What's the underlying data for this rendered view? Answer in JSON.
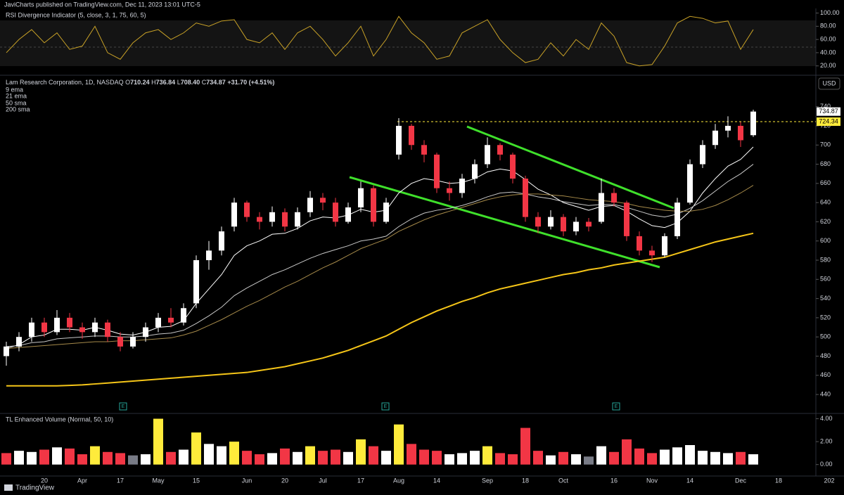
{
  "header": {
    "published": "JaviCharts published on TradingView.com, Dec 11, 2023 13:01 UTC-5"
  },
  "footer": {
    "brand": "TradingView"
  },
  "chart_data": [
    {
      "type": "candlestick",
      "title": "Lam Research Corporation, 1D, NASDAQ",
      "ohlc_prefixes": [
        "O",
        "H",
        "L",
        "C"
      ],
      "last_labels": [
        "710.24",
        "736.84",
        "708.40",
        "734.87"
      ],
      "change": "+31.70 (+4.51%)",
      "currency": "USD",
      "earnings_label": "E",
      "up_color": "#ffffff",
      "down_color": "#f23645",
      "categories": [
        null,
        null,
        null,
        "20",
        null,
        null,
        "Apr",
        null,
        null,
        "17",
        null,
        null,
        "May",
        null,
        null,
        "15",
        null,
        null,
        null,
        "Jun",
        null,
        null,
        "20",
        null,
        null,
        "Jul",
        null,
        null,
        "17",
        null,
        null,
        "Aug",
        null,
        null,
        "14",
        null,
        null,
        null,
        "Sep",
        null,
        null,
        "18",
        null,
        null,
        "Oct",
        null,
        null,
        null,
        "16",
        null,
        null,
        "Nov",
        null,
        null,
        "14",
        null,
        null,
        null,
        "Dec",
        null,
        null,
        "18",
        null,
        null,
        null,
        "202"
      ],
      "ohlc": [
        [
          480,
          495,
          470,
          490
        ],
        [
          490,
          505,
          485,
          500
        ],
        [
          500,
          520,
          495,
          515
        ],
        [
          515,
          520,
          500,
          505
        ],
        [
          505,
          528,
          502,
          520
        ],
        [
          520,
          525,
          505,
          510
        ],
        [
          510,
          515,
          498,
          505
        ],
        [
          505,
          520,
          500,
          515
        ],
        [
          515,
          518,
          495,
          500
        ],
        [
          500,
          505,
          485,
          490
        ],
        [
          490,
          505,
          488,
          500
        ],
        [
          500,
          515,
          495,
          510
        ],
        [
          510,
          525,
          505,
          520
        ],
        [
          520,
          530,
          510,
          515
        ],
        [
          515,
          535,
          512,
          530
        ],
        [
          535,
          585,
          530,
          580
        ],
        [
          580,
          600,
          570,
          590
        ],
        [
          590,
          615,
          585,
          610
        ],
        [
          615,
          645,
          610,
          640
        ],
        [
          640,
          642,
          620,
          625
        ],
        [
          625,
          630,
          612,
          620
        ],
        [
          620,
          636,
          615,
          630
        ],
        [
          630,
          634,
          610,
          615
        ],
        [
          615,
          635,
          612,
          630
        ],
        [
          630,
          652,
          625,
          645
        ],
        [
          645,
          650,
          632,
          640
        ],
        [
          640,
          645,
          615,
          620
        ],
        [
          620,
          640,
          618,
          635
        ],
        [
          635,
          662,
          630,
          655
        ],
        [
          655,
          658,
          615,
          620
        ],
        [
          620,
          645,
          618,
          640
        ],
        [
          690,
          728,
          685,
          720
        ],
        [
          720,
          722,
          695,
          700
        ],
        [
          700,
          705,
          682,
          690
        ],
        [
          690,
          692,
          650,
          655
        ],
        [
          655,
          662,
          642,
          650
        ],
        [
          650,
          670,
          645,
          665
        ],
        [
          665,
          685,
          660,
          680
        ],
        [
          680,
          708,
          676,
          700
        ],
        [
          700,
          702,
          684,
          690
        ],
        [
          690,
          692,
          660,
          665
        ],
        [
          665,
          668,
          620,
          625
        ],
        [
          625,
          630,
          608,
          615
        ],
        [
          615,
          632,
          612,
          625
        ],
        [
          625,
          628,
          605,
          610
        ],
        [
          610,
          625,
          606,
          620
        ],
        [
          620,
          624,
          610,
          615
        ],
        [
          620,
          665,
          618,
          650
        ],
        [
          650,
          655,
          636,
          640
        ],
        [
          640,
          642,
          600,
          605
        ],
        [
          605,
          610,
          585,
          590
        ],
        [
          590,
          595,
          578,
          585
        ],
        [
          585,
          608,
          583,
          605
        ],
        [
          605,
          645,
          602,
          640
        ],
        [
          640,
          685,
          638,
          680
        ],
        [
          680,
          705,
          676,
          700
        ],
        [
          700,
          722,
          696,
          715
        ],
        [
          715,
          730,
          708,
          720
        ],
        [
          720,
          724,
          698,
          705
        ],
        [
          710.24,
          736.84,
          708.4,
          734.87
        ],
        null,
        null,
        null,
        null,
        null,
        null
      ],
      "series": [
        {
          "name": "9 ema",
          "color": "#ffffff",
          "values": [
            488,
            492,
            500,
            502,
            508,
            508,
            507,
            510,
            507,
            503,
            502,
            505,
            510,
            511,
            517,
            535,
            550,
            565,
            585,
            595,
            600,
            607,
            608,
            613,
            621,
            625,
            624,
            627,
            633,
            630,
            632,
            650,
            660,
            665,
            663,
            660,
            661,
            665,
            672,
            675,
            673,
            664,
            654,
            648,
            640,
            636,
            632,
            636,
            637,
            631,
            623,
            616,
            614,
            619,
            631,
            650,
            665,
            678,
            685,
            698,
            null,
            null,
            null,
            null,
            null,
            null
          ]
        },
        {
          "name": "21 ema",
          "color": "#c8c8c8",
          "values": [
            490,
            491,
            494,
            495,
            498,
            499,
            500,
            501,
            501,
            500,
            500,
            501,
            503,
            504,
            507,
            514,
            522,
            531,
            543,
            551,
            558,
            565,
            570,
            576,
            582,
            587,
            591,
            595,
            600,
            602,
            605,
            615,
            623,
            629,
            632,
            634,
            637,
            641,
            646,
            650,
            651,
            649,
            646,
            644,
            641,
            639,
            637,
            638,
            638,
            635,
            631,
            627,
            625,
            628,
            634,
            642,
            652,
            662,
            670,
            680,
            null,
            null,
            null,
            null,
            null,
            null
          ]
        },
        {
          "name": "50 sma",
          "color": "#a68a4a",
          "values": [
            488,
            489,
            490,
            491,
            492,
            493,
            494,
            495,
            495,
            496,
            496,
            497,
            498,
            499,
            502,
            506,
            512,
            518,
            525,
            532,
            538,
            545,
            552,
            558,
            565,
            572,
            578,
            585,
            592,
            597,
            602,
            610,
            616,
            622,
            627,
            631,
            635,
            639,
            643,
            646,
            648,
            649,
            649,
            648,
            647,
            645,
            643,
            642,
            641,
            639,
            636,
            634,
            632,
            631,
            631,
            633,
            637,
            643,
            650,
            658,
            null,
            null,
            null,
            null,
            null,
            null
          ]
        },
        {
          "name": "200 sma",
          "color": "#f5c518",
          "values": [
            449,
            449,
            449,
            449,
            449,
            449.5,
            450,
            451,
            452,
            453,
            454,
            455,
            456,
            457,
            458,
            459,
            460,
            461,
            462,
            463,
            465,
            467,
            469,
            472,
            475,
            478,
            482,
            486,
            491,
            496,
            501,
            508,
            515,
            521,
            527,
            532,
            537,
            541,
            546,
            550,
            553,
            556,
            559,
            562,
            565,
            567,
            570,
            572,
            575,
            577,
            579,
            581,
            583,
            587,
            591,
            595,
            599,
            602,
            605,
            608,
            null,
            null,
            null,
            null,
            null,
            null
          ]
        }
      ],
      "level": 724.34,
      "level_color": "#ffeb3b",
      "ylim": [
        421,
        772
      ],
      "yticks": [
        440,
        460,
        480,
        500,
        520,
        540,
        560,
        580,
        600,
        620,
        640,
        660,
        680,
        700,
        720,
        740
      ]
    },
    {
      "type": "line",
      "title": "RSI Divergence Indicator (5, close, 3, 1, 75, 60, 5)",
      "color": "#c9a227",
      "values": [
        40,
        60,
        75,
        55,
        70,
        45,
        50,
        80,
        40,
        30,
        55,
        70,
        75,
        60,
        70,
        85,
        80,
        88,
        90,
        60,
        55,
        70,
        45,
        70,
        80,
        60,
        35,
        55,
        80,
        35,
        60,
        95,
        70,
        55,
        30,
        35,
        70,
        80,
        90,
        60,
        40,
        25,
        30,
        55,
        35,
        60,
        45,
        85,
        65,
        25,
        20,
        22,
        50,
        85,
        95,
        92,
        85,
        88,
        45,
        75,
        null,
        null,
        null,
        null,
        null,
        null
      ],
      "ylim": [
        8,
        107
      ],
      "yticks": [
        {
          "value": 100,
          "label": "100.00"
        },
        {
          "value": 80,
          "label": "80.00"
        },
        {
          "value": 60,
          "label": "60.00"
        },
        {
          "value": 40,
          "label": "40.00"
        },
        {
          "value": 20,
          "label": "20.00"
        }
      ]
    },
    {
      "type": "bar",
      "title": "TL Enhanced Volume (Normal, 50, 10)",
      "values": [
        1.0,
        1.2,
        1.1,
        1.3,
        1.5,
        1.4,
        0.9,
        1.6,
        1.1,
        1.0,
        0.8,
        0.9,
        4.0,
        1.1,
        1.3,
        2.8,
        1.8,
        1.6,
        2.0,
        1.2,
        0.9,
        1.0,
        1.4,
        1.1,
        1.6,
        1.2,
        1.3,
        1.1,
        2.2,
        1.6,
        1.2,
        3.5,
        1.8,
        1.3,
        1.2,
        0.9,
        1.0,
        1.2,
        1.6,
        1.0,
        0.9,
        3.2,
        1.2,
        0.8,
        1.1,
        0.9,
        0.7,
        1.6,
        1.1,
        2.2,
        1.4,
        1.0,
        1.3,
        1.5,
        1.7,
        1.2,
        1.1,
        1.0,
        1.1,
        0.9,
        null,
        null,
        null,
        null,
        null,
        null
      ],
      "colors": [
        "#f23645",
        "#ffffff",
        "#ffffff",
        "#f23645",
        "#ffffff",
        "#f23645",
        "#f23645",
        "#ffeb3b",
        "#f23645",
        "#f23645",
        "#787b86",
        "#ffffff",
        "#ffeb3b",
        "#f23645",
        "#ffffff",
        "#ffeb3b",
        "#ffffff",
        "#ffffff",
        "#ffeb3b",
        "#f23645",
        "#f23645",
        "#ffffff",
        "#f23645",
        "#ffffff",
        "#ffeb3b",
        "#f23645",
        "#f23645",
        "#ffffff",
        "#ffeb3b",
        "#f23645",
        "#ffffff",
        "#ffeb3b",
        "#f23645",
        "#f23645",
        "#f23645",
        "#ffffff",
        "#ffffff",
        "#ffffff",
        "#ffeb3b",
        "#f23645",
        "#f23645",
        "#f23645",
        "#f23645",
        "#ffffff",
        "#f23645",
        "#ffffff",
        "#787b86",
        "#ffffff",
        "#f23645",
        "#f23645",
        "#f23645",
        "#f23645",
        "#ffffff",
        "#ffffff",
        "#ffffff",
        "#ffffff",
        "#ffffff",
        "#ffffff",
        "#f23645",
        "#ffffff",
        null,
        null,
        null,
        null,
        null,
        null
      ],
      "ylim": [
        -1,
        4.4
      ],
      "yticks": [
        {
          "value": 4,
          "label": "4.00"
        },
        {
          "value": 2,
          "label": "2.00"
        },
        {
          "value": 0,
          "label": "0.00"
        }
      ]
    }
  ]
}
